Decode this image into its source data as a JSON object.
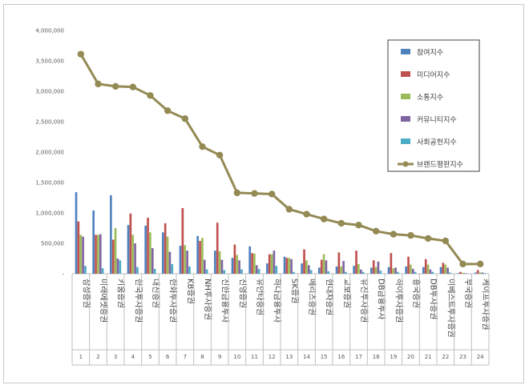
{
  "chart_data": {
    "type": "bar",
    "title": "",
    "xlabel": "",
    "ylabel": "",
    "ylim": [
      0,
      4000000
    ],
    "yticks": [
      "-",
      "500,000",
      "1,000,000",
      "1,500,000",
      "2,000,000",
      "2,500,000",
      "3,000,000",
      "3,500,000",
      "4,000,000"
    ],
    "grid": false,
    "legend_position": "top-right",
    "categories": [
      "삼성증권",
      "미래에셋증권",
      "키움증권",
      "한국투자증권",
      "대신증권",
      "한화투자증권",
      "KB증권",
      "NH투자증권",
      "신한금융투자",
      "신영증권",
      "유안타증권",
      "하나금융투자",
      "SK증권",
      "메리츠증권",
      "현대차증권",
      "교보증권",
      "유진투자증권",
      "DB금융투자",
      "하이투자증권",
      "흥국증권",
      "DB투자증권",
      "이베스트투자증권",
      "부국증권",
      "케이프투자증권"
    ],
    "ranks": [
      "1",
      "2",
      "3",
      "4",
      "5",
      "6",
      "7",
      "8",
      "9",
      "10",
      "11",
      "12",
      "13",
      "14",
      "15",
      "16",
      "17",
      "18",
      "19",
      "20",
      "21",
      "22",
      "23",
      "24"
    ],
    "series": [
      {
        "name": "참여지수",
        "kind": "bar",
        "color": "#4f81bd",
        "values": [
          1340000,
          1040000,
          1290000,
          800000,
          790000,
          680000,
          460000,
          620000,
          380000,
          260000,
          450000,
          170000,
          280000,
          170000,
          100000,
          120000,
          130000,
          100000,
          110000,
          120000,
          110000,
          110000,
          10000,
          20000
        ]
      },
      {
        "name": "미디어지수",
        "kind": "bar",
        "color": "#c0504d",
        "values": [
          860000,
          640000,
          560000,
          990000,
          920000,
          830000,
          1080000,
          540000,
          840000,
          480000,
          340000,
          320000,
          260000,
          400000,
          230000,
          350000,
          380000,
          220000,
          340000,
          280000,
          240000,
          180000,
          30000,
          60000
        ]
      },
      {
        "name": "소통지수",
        "kind": "bar",
        "color": "#9bbb59",
        "values": [
          640000,
          640000,
          750000,
          640000,
          680000,
          610000,
          470000,
          590000,
          370000,
          310000,
          330000,
          320000,
          260000,
          220000,
          320000,
          120000,
          160000,
          110000,
          90000,
          150000,
          150000,
          150000,
          15000,
          20000
        ]
      },
      {
        "name": "커뮤니티지수",
        "kind": "bar",
        "color": "#8064a2",
        "values": [
          610000,
          650000,
          250000,
          500000,
          420000,
          360000,
          380000,
          230000,
          230000,
          220000,
          140000,
          380000,
          240000,
          140000,
          220000,
          210000,
          70000,
          200000,
          100000,
          80000,
          70000,
          100000,
          10000,
          20000
        ]
      },
      {
        "name": "사회공헌지수",
        "kind": "bar",
        "color": "#4bacc6",
        "values": [
          130000,
          90000,
          220000,
          110000,
          80000,
          160000,
          120000,
          70000,
          60000,
          70000,
          80000,
          130000,
          30000,
          60000,
          40000,
          30000,
          30000,
          50000,
          30000,
          30000,
          30000,
          20000,
          5000,
          10000
        ]
      },
      {
        "name": "브랜드평판지수",
        "kind": "line",
        "color": "#948a54",
        "values": [
          3610000,
          3120000,
          3080000,
          3070000,
          2930000,
          2680000,
          2550000,
          2090000,
          1950000,
          1330000,
          1320000,
          1310000,
          1060000,
          980000,
          900000,
          830000,
          800000,
          700000,
          650000,
          630000,
          580000,
          540000,
          160000,
          160000
        ]
      }
    ]
  }
}
